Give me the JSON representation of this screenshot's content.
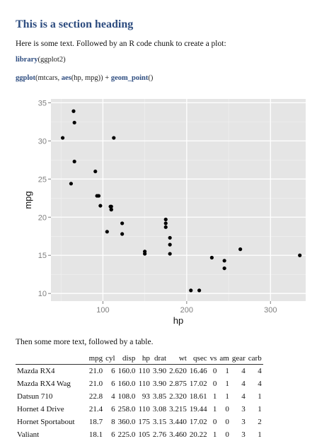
{
  "document": {
    "heading": "This is a section heading",
    "intro": "Here is some text. Followed by an R code chunk to create a plot:",
    "code1": {
      "fn": "library",
      "rest": "(ggplot2)"
    },
    "code2": {
      "fn1": "ggplot",
      "a1": "(mtcars, ",
      "fn2": "aes",
      "a2": "(hp, mpg)) + ",
      "fn3": "geom_point",
      "a3": "()"
    },
    "after_plot": "Then some more text, followed by a table."
  },
  "chart_data": {
    "type": "scatter",
    "xlabel": "hp",
    "ylabel": "mpg",
    "xlim": [
      38,
      342
    ],
    "ylim": [
      9,
      35.5
    ],
    "xticks": [
      100,
      200,
      300
    ],
    "yticks": [
      10,
      15,
      20,
      25,
      30,
      35
    ],
    "grid": true,
    "points": [
      [
        110,
        21.0
      ],
      [
        110,
        21.0
      ],
      [
        93,
        22.8
      ],
      [
        110,
        21.4
      ],
      [
        175,
        18.7
      ],
      [
        105,
        18.1
      ],
      [
        245,
        14.3
      ],
      [
        62,
        24.4
      ],
      [
        95,
        22.8
      ],
      [
        123,
        19.2
      ],
      [
        123,
        17.8
      ],
      [
        180,
        16.4
      ],
      [
        180,
        17.3
      ],
      [
        180,
        15.2
      ],
      [
        205,
        10.4
      ],
      [
        215,
        10.4
      ],
      [
        230,
        14.7
      ],
      [
        66,
        32.4
      ],
      [
        52,
        30.4
      ],
      [
        65,
        33.9
      ],
      [
        97,
        21.5
      ],
      [
        150,
        15.5
      ],
      [
        150,
        15.2
      ],
      [
        245,
        13.3
      ],
      [
        175,
        19.2
      ],
      [
        66,
        27.3
      ],
      [
        91,
        26.0
      ],
      [
        113,
        30.4
      ],
      [
        264,
        15.8
      ],
      [
        175,
        19.7
      ],
      [
        335,
        15.0
      ],
      [
        109,
        21.4
      ]
    ]
  },
  "table": {
    "columns": [
      "mpg",
      "cyl",
      "disp",
      "hp",
      "drat",
      "wt",
      "qsec",
      "vs",
      "am",
      "gear",
      "carb"
    ],
    "rows": [
      {
        "name": "Mazda RX4",
        "values": [
          "21.0",
          "6",
          "160.0",
          "110",
          "3.90",
          "2.620",
          "16.46",
          "0",
          "1",
          "4",
          "4"
        ]
      },
      {
        "name": "Mazda RX4 Wag",
        "values": [
          "21.0",
          "6",
          "160.0",
          "110",
          "3.90",
          "2.875",
          "17.02",
          "0",
          "1",
          "4",
          "4"
        ]
      },
      {
        "name": "Datsun 710",
        "values": [
          "22.8",
          "4",
          "108.0",
          "93",
          "3.85",
          "2.320",
          "18.61",
          "1",
          "1",
          "4",
          "1"
        ]
      },
      {
        "name": "Hornet 4 Drive",
        "values": [
          "21.4",
          "6",
          "258.0",
          "110",
          "3.08",
          "3.215",
          "19.44",
          "1",
          "0",
          "3",
          "1"
        ]
      },
      {
        "name": "Hornet Sportabout",
        "values": [
          "18.7",
          "8",
          "360.0",
          "175",
          "3.15",
          "3.440",
          "17.02",
          "0",
          "0",
          "3",
          "2"
        ]
      },
      {
        "name": "Valiant",
        "values": [
          "18.1",
          "6",
          "225.0",
          "105",
          "2.76",
          "3.460",
          "20.22",
          "1",
          "0",
          "3",
          "1"
        ]
      }
    ]
  }
}
